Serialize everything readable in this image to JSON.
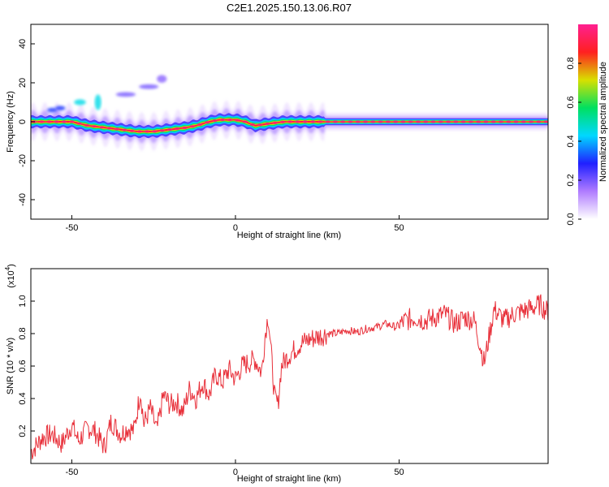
{
  "title": "C2E1.2025.150.13.06.R07",
  "colorbar": {
    "label": "Normalized spectral amplitude",
    "ticks": [
      "0.0",
      "0.2",
      "0.4",
      "0.6",
      "0.8"
    ],
    "tick_values": [
      0.0,
      0.2,
      0.4,
      0.6,
      0.8
    ],
    "range": [
      0.0,
      1.0
    ],
    "colors": [
      "#ffffff",
      "#b07cff",
      "#2020ff",
      "#00d8ff",
      "#00e060",
      "#d8e000",
      "#ff2020",
      "#ff2090"
    ]
  },
  "chart_data": [
    {
      "type": "heatmap",
      "xlabel": "Height of straight line (km)",
      "ylabel": "Frequency (Hz)",
      "xlim": [
        -62.5,
        95.5
      ],
      "ylim": [
        -50,
        50
      ],
      "xticks": [
        -50,
        0,
        50
      ],
      "yticks": [
        -40,
        -20,
        0,
        20,
        40
      ],
      "xtick_labels": [
        "-50",
        "0",
        "50"
      ],
      "ytick_labels": [
        "-40",
        "-20",
        "0",
        "20",
        "40"
      ],
      "ridge": {
        "x": [
          -62,
          -55,
          -50,
          -45,
          -40,
          -35,
          -30,
          -25,
          -20,
          -15,
          -12,
          -8,
          -5,
          0,
          3,
          6,
          10,
          15,
          20,
          25,
          30,
          40,
          60,
          80,
          95
        ],
        "y": [
          0,
          0,
          0,
          -2,
          -3,
          -4,
          -5,
          -5,
          -4,
          -3,
          -2,
          0,
          1,
          1,
          0,
          -2,
          -1,
          0,
          0,
          0,
          0,
          0,
          0,
          0,
          0
        ]
      },
      "blobs": [
        {
          "x": -56,
          "y": 6,
          "w": 1.5,
          "h": 1.2,
          "amp": 0.3
        },
        {
          "x": -53.5,
          "y": 7,
          "w": 1.5,
          "h": 1.2,
          "amp": 0.3
        },
        {
          "x": -47.5,
          "y": 10,
          "w": 1.8,
          "h": 1.5,
          "amp": 0.45
        },
        {
          "x": -42,
          "y": 10,
          "w": 1,
          "h": 4,
          "amp": 0.45
        },
        {
          "x": -33.5,
          "y": 14,
          "w": 3,
          "h": 1.2,
          "amp": 0.2
        },
        {
          "x": -26.5,
          "y": 18,
          "w": 3,
          "h": 1.2,
          "amp": 0.2
        },
        {
          "x": -22.5,
          "y": 22,
          "w": 1.5,
          "h": 2,
          "amp": 0.18
        }
      ]
    },
    {
      "type": "line",
      "xlabel": "Height of straight line (km)",
      "ylabel": "SNR (10 * v/v)",
      "yscale_label": "(x10",
      "yscale_exp": "4",
      "yscale_close": ")",
      "xlim": [
        -62.5,
        95.5
      ],
      "ylim": [
        0.0,
        1.2
      ],
      "xticks": [
        -50,
        0,
        50
      ],
      "yticks": [
        0.2,
        0.4,
        0.6,
        0.8,
        1.0
      ],
      "xtick_labels": [
        "-50",
        "0",
        "50"
      ],
      "ytick_labels": [
        "0.2",
        "0.4",
        "0.6",
        "0.8",
        "1.0"
      ],
      "color": "#e8303a",
      "series": [
        {
          "x": [
            -62,
            -59,
            -56,
            -53,
            -50,
            -48,
            -45,
            -43,
            -40,
            -38,
            -35,
            -33,
            -31,
            -29,
            -28,
            -26,
            -24,
            -22,
            -20,
            -18,
            -16,
            -14,
            -12,
            -10,
            -8,
            -6,
            -4,
            -2,
            0,
            2,
            4,
            6,
            8,
            9,
            10,
            11,
            12,
            13,
            14,
            16,
            18,
            20,
            22,
            25,
            28,
            31,
            34,
            37,
            40,
            43,
            46,
            49,
            52,
            55,
            58,
            61,
            64,
            67,
            70,
            73,
            76,
            79,
            82,
            85,
            88,
            91,
            93,
            95
          ],
          "y": [
            0.08,
            0.16,
            0.18,
            0.12,
            0.24,
            0.14,
            0.22,
            0.2,
            0.1,
            0.26,
            0.18,
            0.22,
            0.2,
            0.45,
            0.24,
            0.34,
            0.2,
            0.42,
            0.36,
            0.38,
            0.32,
            0.46,
            0.4,
            0.5,
            0.42,
            0.55,
            0.5,
            0.58,
            0.52,
            0.6,
            0.62,
            0.64,
            0.56,
            0.78,
            0.92,
            0.66,
            0.4,
            0.36,
            0.6,
            0.66,
            0.7,
            0.74,
            0.76,
            0.78,
            0.8,
            0.8,
            0.82,
            0.81,
            0.83,
            0.84,
            0.86,
            0.84,
            0.88,
            0.9,
            0.88,
            0.9,
            0.92,
            0.86,
            0.9,
            0.88,
            0.62,
            0.95,
            0.88,
            0.92,
            0.94,
            0.96,
            0.98,
            0.94
          ]
        }
      ]
    }
  ]
}
